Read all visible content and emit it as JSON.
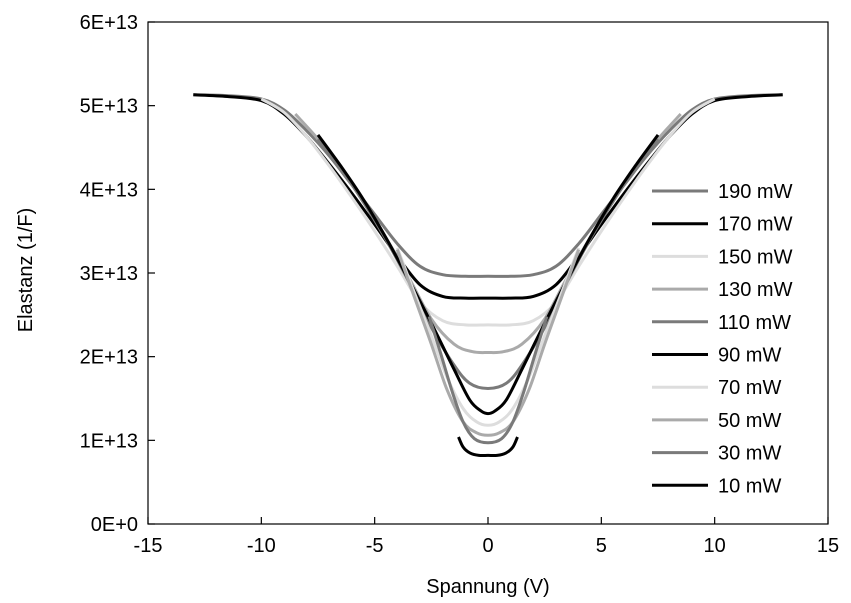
{
  "chart_data": {
    "type": "line",
    "title": "",
    "xlabel": "Spannung  (V)",
    "ylabel": "Elastanz  (1/F)",
    "xlim": [
      -15,
      15
    ],
    "ylim": [
      0,
      60000000000000
    ],
    "x_ticks": [
      -15,
      -10,
      -5,
      0,
      5,
      10,
      15
    ],
    "x_tick_labels": [
      "-15",
      "-10",
      "-5",
      "0",
      "5",
      "10",
      "15"
    ],
    "y_ticks": [
      0,
      10000000000000,
      20000000000000,
      30000000000000,
      40000000000000,
      50000000000000,
      60000000000000
    ],
    "y_tick_labels": [
      "0E+0",
      "1E+13",
      "2E+13",
      "3E+13",
      "4E+13",
      "5E+13",
      "6E+13"
    ],
    "grid": false,
    "legend_position": "right",
    "series": [
      {
        "name": "190 mW",
        "color": "#7a7a7a",
        "points": [
          [
            -13,
            51300000000000.0
          ],
          [
            -11.5,
            51200000000000.0
          ],
          [
            -10,
            50800000000000.0
          ],
          [
            -9,
            49500000000000.0
          ],
          [
            -8,
            47000000000000.0
          ],
          [
            -7,
            44000000000000.0
          ],
          [
            -6,
            40500000000000.0
          ],
          [
            -5,
            37000000000000.0
          ],
          [
            -4,
            33500000000000.0
          ],
          [
            -3,
            30800000000000.0
          ],
          [
            -2,
            29800000000000.0
          ],
          [
            -1,
            29600000000000.0
          ],
          [
            0,
            29600000000000.0
          ],
          [
            1,
            29600000000000.0
          ],
          [
            2,
            29800000000000.0
          ],
          [
            3,
            30800000000000.0
          ],
          [
            4,
            33500000000000.0
          ],
          [
            5,
            37000000000000.0
          ],
          [
            6,
            40500000000000.0
          ],
          [
            7,
            44000000000000.0
          ],
          [
            8,
            47000000000000.0
          ],
          [
            9,
            49500000000000.0
          ],
          [
            10,
            50800000000000.0
          ],
          [
            11.5,
            51200000000000.0
          ],
          [
            13,
            51300000000000.0
          ]
        ]
      },
      {
        "name": "170 mW",
        "color": "#000000",
        "points": [
          [
            -13,
            51300000000000.0
          ],
          [
            -11.5,
            51100000000000.0
          ],
          [
            -10,
            50600000000000.0
          ],
          [
            -9,
            49000000000000.0
          ],
          [
            -8,
            46300000000000.0
          ],
          [
            -7,
            43000000000000.0
          ],
          [
            -6,
            39500000000000.0
          ],
          [
            -5,
            35800000000000.0
          ],
          [
            -4,
            32000000000000.0
          ],
          [
            -3,
            28600000000000.0
          ],
          [
            -2,
            27200000000000.0
          ],
          [
            -1,
            27000000000000.0
          ],
          [
            0,
            27000000000000.0
          ],
          [
            1,
            27000000000000.0
          ],
          [
            2,
            27200000000000.0
          ],
          [
            3,
            28600000000000.0
          ],
          [
            4,
            32000000000000.0
          ],
          [
            5,
            35800000000000.0
          ],
          [
            6,
            39500000000000.0
          ],
          [
            7,
            43000000000000.0
          ],
          [
            8,
            46300000000000.0
          ],
          [
            9,
            49000000000000.0
          ],
          [
            10,
            50600000000000.0
          ],
          [
            11.5,
            51100000000000.0
          ],
          [
            13,
            51300000000000.0
          ]
        ]
      },
      {
        "name": "150 mW",
        "color": "#dddddd",
        "points": [
          [
            -10,
            50800000000000.0
          ],
          [
            -9,
            49200000000000.0
          ],
          [
            -8,
            46300000000000.0
          ],
          [
            -7,
            42800000000000.0
          ],
          [
            -6,
            39000000000000.0
          ],
          [
            -5,
            35000000000000.0
          ],
          [
            -4,
            30800000000000.0
          ],
          [
            -3,
            26500000000000.0
          ],
          [
            -2,
            24300000000000.0
          ],
          [
            -1,
            23800000000000.0
          ],
          [
            0,
            23800000000000.0
          ],
          [
            1,
            23800000000000.0
          ],
          [
            2,
            24300000000000.0
          ],
          [
            3,
            26500000000000.0
          ],
          [
            4,
            30800000000000.0
          ],
          [
            5,
            35000000000000.0
          ],
          [
            6,
            39000000000000.0
          ],
          [
            7,
            42800000000000.0
          ],
          [
            8,
            46300000000000.0
          ],
          [
            9,
            49200000000000.0
          ],
          [
            10,
            50800000000000.0
          ]
        ]
      },
      {
        "name": "130 mW",
        "color": "#aaaaaa",
        "points": [
          [
            -8.5,
            49000000000000.0
          ],
          [
            -7.5,
            46000000000000.0
          ],
          [
            -6.5,
            42500000000000.0
          ],
          [
            -5.5,
            38500000000000.0
          ],
          [
            -4.5,
            34200000000000.0
          ],
          [
            -3.5,
            29500000000000.0
          ],
          [
            -2.5,
            24500000000000.0
          ],
          [
            -1.5,
            21500000000000.0
          ],
          [
            -0.7,
            20600000000000.0
          ],
          [
            0,
            20500000000000.0
          ],
          [
            0.7,
            20600000000000.0
          ],
          [
            1.5,
            21500000000000.0
          ],
          [
            2.5,
            24500000000000.0
          ],
          [
            3.5,
            29500000000000.0
          ],
          [
            4.5,
            34200000000000.0
          ],
          [
            5.5,
            38500000000000.0
          ],
          [
            6.5,
            42500000000000.0
          ],
          [
            7.5,
            46000000000000.0
          ],
          [
            8.5,
            49000000000000.0
          ]
        ]
      },
      {
        "name": "110 mW",
        "color": "#7a7a7a",
        "points": [
          [
            -7.5,
            46000000000000.0
          ],
          [
            -6.5,
            42500000000000.0
          ],
          [
            -5.5,
            38500000000000.0
          ],
          [
            -4.5,
            34000000000000.0
          ],
          [
            -3.5,
            29000000000000.0
          ],
          [
            -2.5,
            23500000000000.0
          ],
          [
            -1.5,
            19000000000000.0
          ],
          [
            -0.8,
            16800000000000.0
          ],
          [
            0,
            16200000000000.0
          ],
          [
            0.8,
            16800000000000.0
          ],
          [
            1.5,
            19000000000000.0
          ],
          [
            2.5,
            23500000000000.0
          ],
          [
            3.5,
            29000000000000.0
          ],
          [
            4.5,
            34000000000000.0
          ],
          [
            5.5,
            38500000000000.0
          ],
          [
            6.5,
            42500000000000.0
          ],
          [
            7.5,
            46000000000000.0
          ]
        ]
      },
      {
        "name": "90 mW",
        "color": "#000000",
        "points": [
          [
            -7.5,
            46500000000000.0
          ],
          [
            -6.5,
            42800000000000.0
          ],
          [
            -5.5,
            38800000000000.0
          ],
          [
            -4.5,
            34200000000000.0
          ],
          [
            -3.5,
            29200000000000.0
          ],
          [
            -2.5,
            24000000000000.0
          ],
          [
            -1.5,
            18500000000000.0
          ],
          [
            -0.8,
            14800000000000.0
          ],
          [
            -0.3,
            13500000000000.0
          ],
          [
            0,
            13200000000000.0
          ],
          [
            0.3,
            13500000000000.0
          ],
          [
            0.8,
            14800000000000.0
          ],
          [
            1.5,
            18500000000000.0
          ],
          [
            2.5,
            24000000000000.0
          ],
          [
            3.5,
            29200000000000.0
          ],
          [
            4.5,
            34200000000000.0
          ],
          [
            5.5,
            38800000000000.0
          ],
          [
            6.5,
            42800000000000.0
          ],
          [
            7.5,
            46500000000000.0
          ]
        ]
      },
      {
        "name": "70 mW",
        "color": "#dddddd",
        "points": [
          [
            -4,
            33000000000000.0
          ],
          [
            -3.3,
            28000000000000.0
          ],
          [
            -2.5,
            22500000000000.0
          ],
          [
            -1.8,
            17500000000000.0
          ],
          [
            -1.1,
            13800000000000.0
          ],
          [
            -0.5,
            12200000000000.0
          ],
          [
            0,
            11800000000000.0
          ],
          [
            0.5,
            12200000000000.0
          ],
          [
            1.1,
            13800000000000.0
          ],
          [
            1.8,
            17500000000000.0
          ],
          [
            2.5,
            22500000000000.0
          ],
          [
            3.3,
            28000000000000.0
          ],
          [
            4,
            33000000000000.0
          ]
        ]
      },
      {
        "name": "50 mW",
        "color": "#aaaaaa",
        "points": [
          [
            -4,
            32800000000000.0
          ],
          [
            -3.3,
            27500000000000.0
          ],
          [
            -2.5,
            21500000000000.0
          ],
          [
            -1.8,
            16000000000000.0
          ],
          [
            -1.1,
            12200000000000.0
          ],
          [
            -0.5,
            10900000000000.0
          ],
          [
            0,
            10600000000000.0
          ],
          [
            0.5,
            10900000000000.0
          ],
          [
            1.1,
            12200000000000.0
          ],
          [
            1.8,
            16000000000000.0
          ],
          [
            2.5,
            21500000000000.0
          ],
          [
            3.3,
            27500000000000.0
          ],
          [
            4,
            32800000000000.0
          ]
        ]
      },
      {
        "name": "30 mW",
        "color": "#7a7a7a",
        "points": [
          [
            -2.6,
            24800000000000.0
          ],
          [
            -2.1,
            20500000000000.0
          ],
          [
            -1.6,
            16000000000000.0
          ],
          [
            -1.1,
            12200000000000.0
          ],
          [
            -0.6,
            10200000000000.0
          ],
          [
            0,
            9700000000000.0
          ],
          [
            0.6,
            10200000000000.0
          ],
          [
            1.1,
            12200000000000.0
          ],
          [
            1.6,
            16000000000000.0
          ],
          [
            2.1,
            20500000000000.0
          ],
          [
            2.6,
            24800000000000.0
          ]
        ]
      },
      {
        "name": "10 mW",
        "color": "#000000",
        "points": [
          [
            -1.3,
            10400000000000.0
          ],
          [
            -1.1,
            9200000000000.0
          ],
          [
            -0.8,
            8500000000000.0
          ],
          [
            -0.4,
            8200000000000.0
          ],
          [
            0,
            8200000000000.0
          ],
          [
            0.4,
            8200000000000.0
          ],
          [
            0.8,
            8500000000000.0
          ],
          [
            1.1,
            9200000000000.0
          ],
          [
            1.3,
            10400000000000.0
          ]
        ]
      }
    ]
  }
}
